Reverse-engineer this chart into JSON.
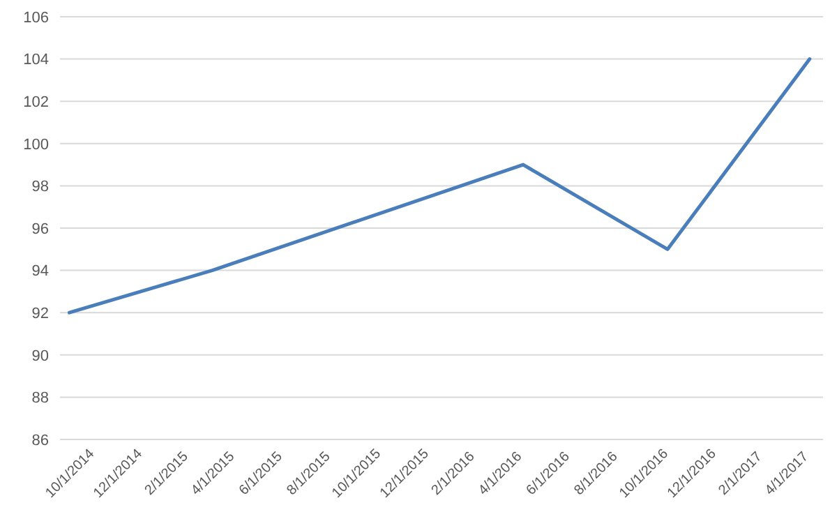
{
  "chart_data": {
    "type": "line",
    "x": [
      "2014-10-01",
      "2015-04-01",
      "2016-05-01",
      "2016-11-01",
      "2017-05-01"
    ],
    "values": [
      92,
      94,
      99,
      95,
      104
    ],
    "color": "#4a7ebb",
    "xlim": [
      "2014-09-19",
      "2017-05-18"
    ],
    "xticks": [
      {
        "value": "2014-10-01",
        "label": "10/1/2014"
      },
      {
        "value": "2014-12-01",
        "label": "12/1/2014"
      },
      {
        "value": "2015-02-01",
        "label": "2/1/2015"
      },
      {
        "value": "2015-04-01",
        "label": "4/1/2015"
      },
      {
        "value": "2015-06-01",
        "label": "6/1/2015"
      },
      {
        "value": "2015-08-01",
        "label": "8/1/2015"
      },
      {
        "value": "2015-10-01",
        "label": "10/1/2015"
      },
      {
        "value": "2015-12-01",
        "label": "12/1/2015"
      },
      {
        "value": "2016-02-01",
        "label": "2/1/2016"
      },
      {
        "value": "2016-04-01",
        "label": "4/1/2016"
      },
      {
        "value": "2016-06-01",
        "label": "6/1/2016"
      },
      {
        "value": "2016-08-01",
        "label": "8/1/2016"
      },
      {
        "value": "2016-10-01",
        "label": "10/1/2016"
      },
      {
        "value": "2016-12-01",
        "label": "12/1/2016"
      },
      {
        "value": "2017-02-01",
        "label": "2/1/2017"
      },
      {
        "value": "2017-04-01",
        "label": "4/1/2017"
      }
    ],
    "ylim": [
      86,
      106
    ],
    "yticks": [
      86,
      88,
      90,
      92,
      94,
      96,
      98,
      100,
      102,
      104,
      106
    ],
    "grid": "y"
  }
}
